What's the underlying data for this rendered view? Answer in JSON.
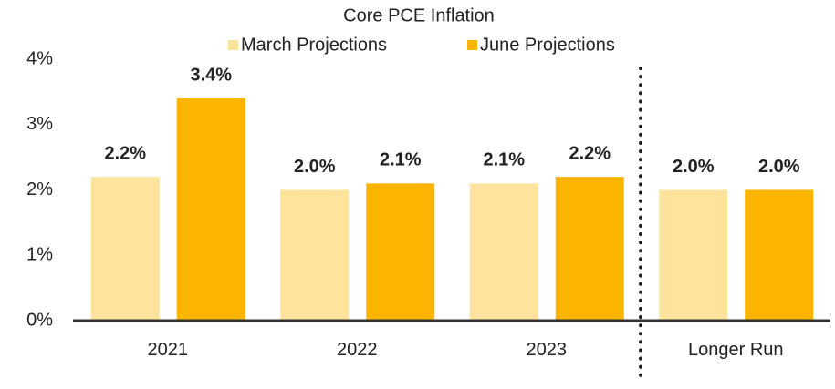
{
  "chart_data": {
    "type": "bar",
    "title": "Core PCE Inflation",
    "categories": [
      "2021",
      "2022",
      "2023",
      "Longer Run"
    ],
    "series": [
      {
        "name": "March Projections",
        "color": "#FDE39B",
        "values": [
          2.2,
          2.0,
          2.1,
          2.0
        ],
        "value_labels": [
          "2.2%",
          "2.0%",
          "2.1%",
          "2.0%"
        ]
      },
      {
        "name": "June Projections",
        "color": "#FBB500",
        "values": [
          3.4,
          2.1,
          2.2,
          2.0
        ],
        "value_labels": [
          "3.4%",
          "2.1%",
          "2.2%",
          "2.0%"
        ]
      }
    ],
    "ylim": [
      0,
      4
    ],
    "yticks": [
      {
        "value": 0,
        "label": "0%"
      },
      {
        "value": 1,
        "label": "1%"
      },
      {
        "value": 2,
        "label": "2%"
      },
      {
        "value": 3,
        "label": "3%"
      },
      {
        "value": 4,
        "label": "4%"
      }
    ],
    "grid": false
  }
}
